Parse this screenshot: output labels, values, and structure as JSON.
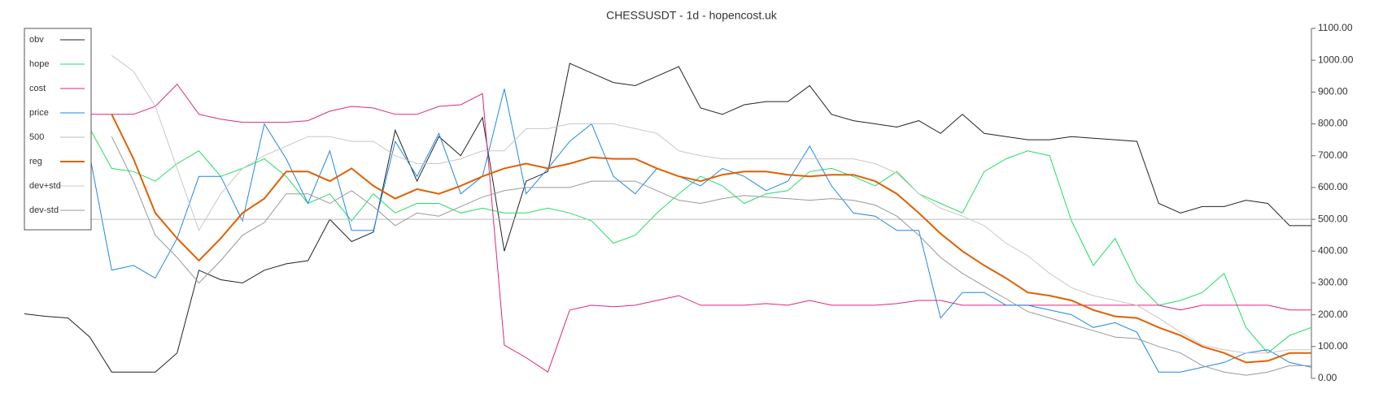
{
  "chart_data": {
    "type": "line",
    "title": "CHESSUSDT - 1d - hopencost.uk",
    "ylim": [
      0,
      1100
    ],
    "yticks": [
      {
        "value": 0,
        "label": "0.00"
      },
      {
        "value": 100,
        "label": "100.00"
      },
      {
        "value": 200,
        "label": "200.00"
      },
      {
        "value": 300,
        "label": "300.00"
      },
      {
        "value": 400,
        "label": "400.00"
      },
      {
        "value": 500,
        "label": "500.00"
      },
      {
        "value": 600,
        "label": "600.00"
      },
      {
        "value": 700,
        "label": "700.00"
      },
      {
        "value": 800,
        "label": "800.00"
      },
      {
        "value": 900,
        "label": "900.00"
      },
      {
        "value": 1000,
        "label": "1000.00"
      },
      {
        "value": 1100,
        "label": "1100.00"
      }
    ],
    "y_axis_side": "right",
    "legend": "upper left",
    "grid": false,
    "series": [
      {
        "name": "obv",
        "color": "#222222",
        "width": 1,
        "values": [
          203,
          195,
          190,
          130,
          20,
          20,
          20,
          80,
          340,
          310,
          300,
          340,
          360,
          370,
          500,
          430,
          460,
          780,
          620,
          760,
          700,
          820,
          400,
          620,
          650,
          990,
          960,
          930,
          920,
          950,
          980,
          850,
          830,
          860,
          870,
          870,
          920,
          830,
          810,
          800,
          790,
          810,
          770,
          830,
          770,
          760,
          750,
          750,
          760,
          755,
          750,
          745,
          550,
          520,
          540,
          540,
          560,
          550,
          480,
          480
        ]
      },
      {
        "name": "hope",
        "color": "#22dd66",
        "width": 1,
        "values": [
          null,
          null,
          null,
          785,
          660,
          650,
          620,
          675,
          715,
          635,
          660,
          690,
          635,
          550,
          580,
          495,
          580,
          520,
          550,
          550,
          520,
          535,
          520,
          520,
          535,
          520,
          495,
          425,
          450,
          520,
          580,
          635,
          605,
          550,
          580,
          590,
          650,
          660,
          635,
          605,
          650,
          580,
          550,
          520,
          650,
          690,
          715,
          700,
          495,
          355,
          440,
          300,
          230,
          245,
          270,
          330,
          160,
          80,
          135,
          160
        ]
      },
      {
        "name": "cost",
        "color": "#e0267d",
        "width": 1,
        "values": [
          null,
          null,
          null,
          830,
          830,
          830,
          855,
          925,
          830,
          815,
          805,
          805,
          805,
          810,
          840,
          855,
          850,
          830,
          830,
          855,
          860,
          895,
          105,
          65,
          20,
          215,
          230,
          225,
          230,
          245,
          260,
          230,
          230,
          230,
          235,
          230,
          245,
          230,
          230,
          230,
          235,
          245,
          245,
          230,
          230,
          230,
          230,
          230,
          230,
          230,
          230,
          230,
          230,
          215,
          230,
          230,
          230,
          230,
          215,
          215
        ]
      },
      {
        "name": "price",
        "color": "#1e88e5",
        "width": 1,
        "values": [
          null,
          null,
          null,
          700,
          340,
          355,
          315,
          440,
          635,
          635,
          495,
          800,
          690,
          550,
          715,
          465,
          465,
          745,
          635,
          770,
          580,
          635,
          910,
          580,
          660,
          745,
          800,
          635,
          580,
          660,
          635,
          605,
          660,
          635,
          590,
          620,
          730,
          605,
          520,
          510,
          465,
          465,
          190,
          270,
          270,
          230,
          230,
          215,
          200,
          160,
          175,
          145,
          20,
          20,
          35,
          50,
          80,
          90,
          50,
          35
        ]
      },
      {
        "name": "500",
        "color": "#bbbbbb",
        "width": 1,
        "values": [
          500,
          500,
          500,
          500,
          500,
          500,
          500,
          500,
          500,
          500,
          500,
          500,
          500,
          500,
          500,
          500,
          500,
          500,
          500,
          500,
          500,
          500,
          500,
          500,
          500,
          500,
          500,
          500,
          500,
          500,
          500,
          500,
          500,
          500,
          500,
          500,
          500,
          500,
          500,
          500,
          500,
          500,
          500,
          500,
          500,
          500,
          500,
          500,
          500,
          500,
          500,
          500,
          500,
          500,
          500,
          500,
          500,
          500,
          500,
          500
        ]
      },
      {
        "name": "reg",
        "color": "#e06000",
        "width": 2,
        "values": [
          null,
          null,
          null,
          null,
          830,
          690,
          520,
          440,
          370,
          440,
          520,
          565,
          650,
          650,
          620,
          660,
          605,
          565,
          595,
          580,
          605,
          635,
          660,
          675,
          660,
          675,
          695,
          690,
          690,
          660,
          635,
          620,
          640,
          650,
          650,
          640,
          635,
          640,
          640,
          620,
          580,
          520,
          455,
          400,
          355,
          315,
          270,
          260,
          245,
          215,
          195,
          190,
          160,
          135,
          100,
          80,
          50,
          55,
          80,
          80
        ]
      },
      {
        "name": "dev+std",
        "color": "#c8c8c8",
        "width": 1,
        "values": [
          null,
          null,
          null,
          null,
          1015,
          965,
          855,
          660,
          465,
          580,
          660,
          700,
          730,
          760,
          760,
          745,
          745,
          700,
          675,
          675,
          690,
          715,
          715,
          785,
          785,
          800,
          800,
          800,
          785,
          770,
          715,
          700,
          690,
          690,
          690,
          690,
          690,
          690,
          690,
          675,
          645,
          580,
          535,
          510,
          480,
          425,
          385,
          330,
          285,
          260,
          245,
          230,
          190,
          145,
          105,
          90,
          80,
          80,
          90,
          90
        ]
      },
      {
        "name": "dev-std",
        "color": "#999999",
        "width": 1,
        "values": [
          null,
          null,
          null,
          null,
          760,
          620,
          450,
          380,
          300,
          370,
          450,
          490,
          580,
          580,
          550,
          590,
          540,
          480,
          520,
          510,
          540,
          570,
          590,
          600,
          600,
          600,
          620,
          620,
          620,
          590,
          560,
          550,
          565,
          575,
          570,
          565,
          560,
          565,
          560,
          545,
          510,
          450,
          380,
          330,
          290,
          250,
          210,
          190,
          170,
          150,
          130,
          125,
          100,
          80,
          40,
          20,
          10,
          20,
          40,
          40
        ]
      }
    ]
  }
}
